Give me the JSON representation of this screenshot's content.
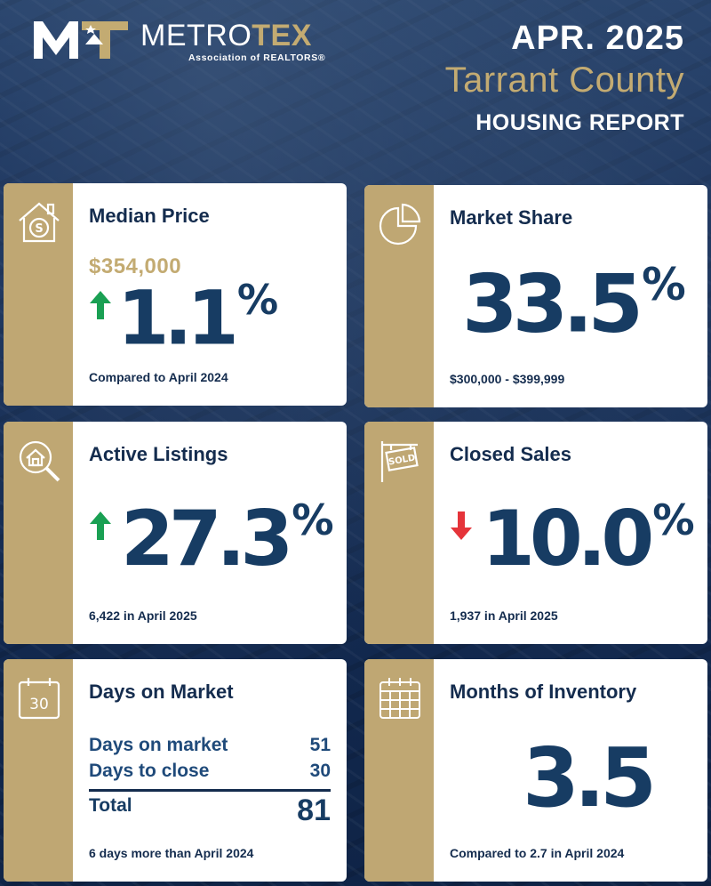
{
  "brand": {
    "name_part1": "METRO",
    "name_part2": "TEX",
    "subtitle": "Association of REALTORS®"
  },
  "header": {
    "date": "APR. 2025",
    "county": "Tarrant County",
    "report": "HOUSING REPORT"
  },
  "colors": {
    "navy": "#142c4e",
    "gold": "#bfa773",
    "up": "#1aa053",
    "down": "#e5343a"
  },
  "median_price": {
    "icon": "house-dollar-icon",
    "title": "Median Price",
    "price": "$354,000",
    "direction": "up",
    "change": "1.1",
    "pct": "%",
    "footnote": "Compared to April 2024"
  },
  "market_share": {
    "icon": "pie-chart-icon",
    "title": "Market Share",
    "value": "33.5",
    "pct": "%",
    "footnote": "$300,000 - $399,999"
  },
  "active_listings": {
    "icon": "house-search-icon",
    "title": "Active Listings",
    "direction": "up",
    "change": "27.3",
    "pct": "%",
    "footnote": "6,422 in April 2025"
  },
  "closed_sales": {
    "icon": "sold-sign-icon",
    "title": "Closed Sales",
    "direction": "down",
    "change": "10.0",
    "pct": "%",
    "footnote": "1,937 in April 2025"
  },
  "days_on_market": {
    "icon": "calendar-30-icon",
    "icon_text": "30",
    "title": "Days on Market",
    "rows": [
      {
        "label": "Days on market",
        "value": "51"
      },
      {
        "label": "Days to close",
        "value": "30"
      }
    ],
    "total_label": "Total",
    "total_value": "81",
    "footnote": "6 days more than April 2024"
  },
  "months_inventory": {
    "icon": "calendar-grid-icon",
    "title": "Months of Inventory",
    "value": "3.5",
    "footnote": "Compared to 2.7 in April 2024"
  }
}
